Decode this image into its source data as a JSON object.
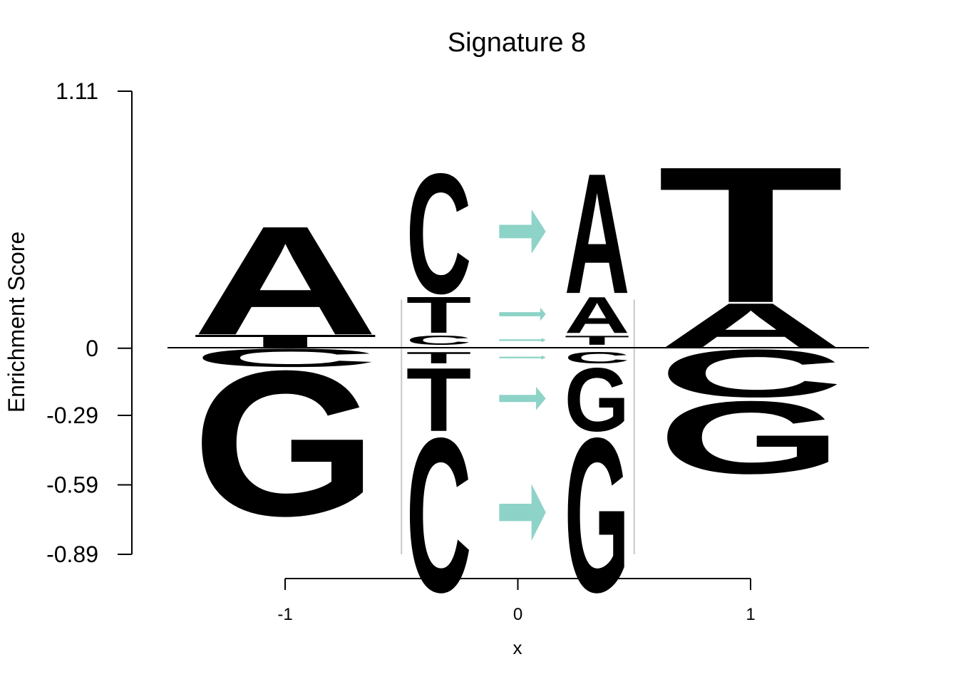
{
  "chart_data": {
    "type": "sequence-logo",
    "title": "Signature 8",
    "xlabel": "x",
    "ylabel": "Enrichment Score",
    "ylim": [
      -0.89,
      1.11
    ],
    "xlim": [
      -1.5,
      1.5
    ],
    "yticks": [
      {
        "value": 1.11,
        "label": "1.11"
      },
      {
        "value": 0,
        "label": "0"
      },
      {
        "value": -0.29,
        "label": "-0.29"
      },
      {
        "value": -0.59,
        "label": "-0.59"
      },
      {
        "value": -0.89,
        "label": "-0.89"
      }
    ],
    "xticks": [
      {
        "value": -1,
        "label": "-1"
      },
      {
        "value": 0,
        "label": "0"
      },
      {
        "value": 1,
        "label": "1"
      }
    ],
    "colors": {
      "A": "#bebada",
      "C": "#fb9a99",
      "G": "#bf5b17",
      "T": "#e2c291",
      "arrow": "#8dd3c7"
    },
    "flanks": [
      {
        "position": -1,
        "stack": [
          {
            "letter": "T",
            "from": 0,
            "to": 0.06
          },
          {
            "letter": "A",
            "from": 0.06,
            "to": 0.54
          },
          {
            "letter": "C",
            "from": 0,
            "to": -0.08
          },
          {
            "letter": "G",
            "from": -0.08,
            "to": -0.72
          }
        ]
      },
      {
        "position": 1,
        "stack": [
          {
            "letter": "A",
            "from": 0,
            "to": 0.2
          },
          {
            "letter": "T",
            "from": 0.2,
            "to": 0.8
          },
          {
            "letter": "C",
            "from": 0,
            "to": -0.21
          },
          {
            "letter": "G",
            "from": -0.22,
            "to": -0.54
          }
        ]
      }
    ],
    "substitutions": [
      {
        "from": "C",
        "to": "A",
        "value": 0.53
      },
      {
        "from": "T",
        "to": "A",
        "value": 0.16
      },
      {
        "from": "C",
        "to": "T",
        "value": 0.04
      },
      {
        "from": "T",
        "to": "C",
        "value": -0.05
      },
      {
        "from": "T",
        "to": "G",
        "value": -0.28
      },
      {
        "from": "C",
        "to": "G",
        "value": -0.68
      }
    ]
  }
}
